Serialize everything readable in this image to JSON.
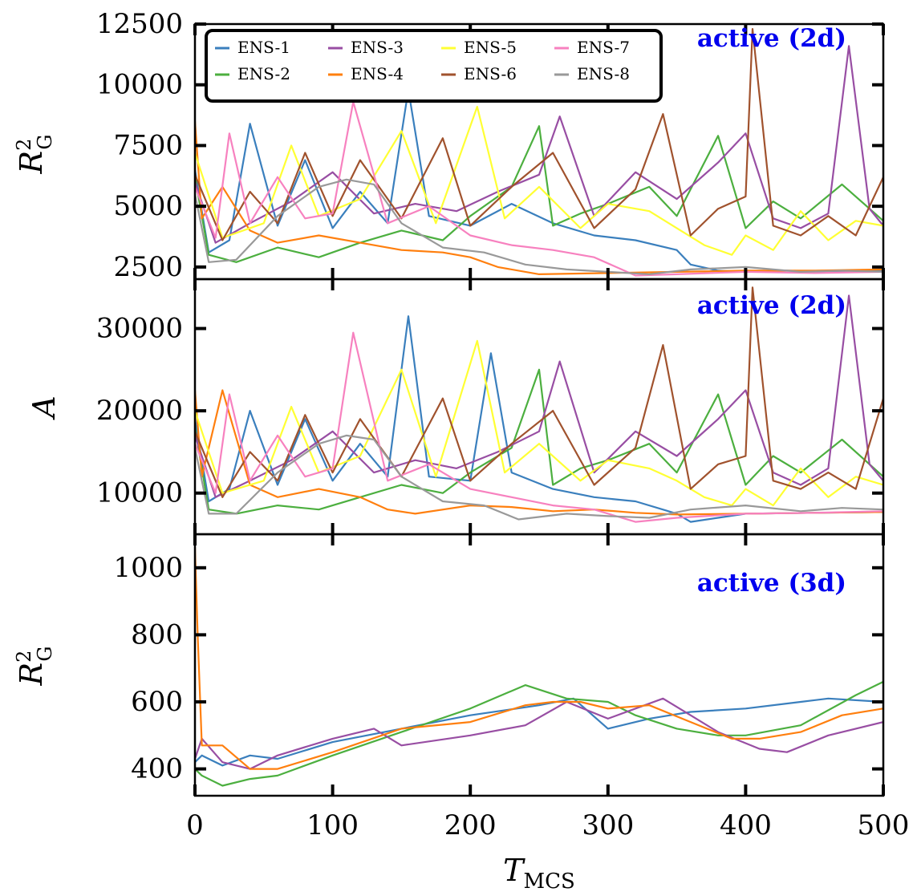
{
  "colors": {
    "ENS-1": "#3a7fbd",
    "ENS-2": "#4caf3f",
    "ENS-3": "#984ea3",
    "ENS-4": "#ff7f0e",
    "ENS-5": "#ffff33",
    "ENS-6": "#a0522d",
    "ENS-7": "#f781bf",
    "ENS-8": "#999999"
  },
  "xaxis": {
    "label_main": "T",
    "label_sub": "MCS",
    "ticks": [
      "0",
      "100",
      "200",
      "300",
      "400",
      "500"
    ],
    "range": [
      0,
      500
    ]
  },
  "chart_data": [
    {
      "type": "line",
      "panel": "top",
      "annotation": "active (2d)",
      "ylabel_main": "R",
      "ylabel_sup": "2",
      "ylabel_sub": "G",
      "ylim": [
        2000,
        12500
      ],
      "yticks": [
        "2500",
        "5000",
        "7500",
        "10000",
        "12500"
      ],
      "legend": {
        "placement": "top-left",
        "entries": [
          "ENS-1",
          "ENS-3",
          "ENS-5",
          "ENS-7",
          "ENS-2",
          "ENS-4",
          "ENS-6",
          "ENS-8"
        ]
      },
      "series": [
        {
          "name": "ENS-1",
          "x": [
            0,
            10,
            25,
            40,
            60,
            80,
            100,
            120,
            140,
            155,
            170,
            200,
            230,
            260,
            290,
            320,
            350,
            360,
            380,
            400,
            430,
            460,
            500
          ],
          "y": [
            6500,
            3100,
            3600,
            8400,
            4200,
            6900,
            4100,
            5600,
            4300,
            9800,
            4600,
            4200,
            5100,
            4300,
            3800,
            3600,
            3200,
            2600,
            2350,
            2300,
            2350,
            2300,
            2350
          ]
        },
        {
          "name": "ENS-2",
          "x": [
            0,
            10,
            30,
            60,
            90,
            120,
            150,
            180,
            200,
            230,
            250,
            260,
            280,
            300,
            330,
            350,
            380,
            400,
            420,
            440,
            470,
            500
          ],
          "y": [
            6200,
            3000,
            2700,
            3300,
            2900,
            3500,
            4000,
            3600,
            4600,
            5800,
            8300,
            4200,
            4700,
            5100,
            5800,
            4600,
            7900,
            4100,
            5200,
            4500,
            5900,
            4400
          ]
        },
        {
          "name": "ENS-3",
          "x": [
            0,
            15,
            40,
            70,
            100,
            130,
            160,
            190,
            220,
            250,
            265,
            290,
            320,
            350,
            380,
            400,
            420,
            440,
            460,
            475,
            490,
            500
          ],
          "y": [
            6000,
            3500,
            4300,
            5200,
            6400,
            4700,
            5100,
            4800,
            5600,
            6300,
            8700,
            4600,
            6400,
            5300,
            6800,
            8000,
            4500,
            4100,
            4700,
            11600,
            4900,
            4200
          ]
        },
        {
          "name": "ENS-4",
          "x": [
            0,
            5,
            20,
            40,
            60,
            90,
            120,
            150,
            180,
            200,
            220,
            250,
            300,
            350,
            400,
            450,
            500
          ],
          "y": [
            8500,
            4500,
            5800,
            4000,
            3500,
            3800,
            3500,
            3200,
            3100,
            2900,
            2500,
            2200,
            2250,
            2300,
            2350,
            2350,
            2400
          ]
        },
        {
          "name": "ENS-5",
          "x": [
            0,
            20,
            50,
            70,
            90,
            120,
            150,
            175,
            205,
            225,
            250,
            280,
            300,
            330,
            350,
            370,
            390,
            400,
            420,
            440,
            460,
            480,
            500
          ],
          "y": [
            7200,
            3700,
            4300,
            7500,
            4600,
            5300,
            8100,
            4300,
            9100,
            4500,
            5800,
            4100,
            5100,
            4800,
            4100,
            3400,
            3000,
            3800,
            3200,
            4800,
            3600,
            4400,
            4200
          ]
        },
        {
          "name": "ENS-6",
          "x": [
            0,
            20,
            40,
            60,
            80,
            100,
            120,
            150,
            180,
            200,
            230,
            260,
            290,
            320,
            340,
            360,
            380,
            400,
            405,
            420,
            440,
            460,
            480,
            500
          ],
          "y": [
            6300,
            3600,
            5600,
            4300,
            7200,
            4600,
            6900,
            4500,
            7800,
            4200,
            5800,
            7200,
            4100,
            5700,
            8800,
            3800,
            4900,
            5400,
            12300,
            4200,
            3800,
            4600,
            3800,
            6200
          ]
        },
        {
          "name": "ENS-7",
          "x": [
            0,
            15,
            25,
            40,
            60,
            80,
            100,
            115,
            140,
            170,
            200,
            230,
            260,
            290,
            320,
            350,
            400,
            450,
            500
          ],
          "y": [
            5800,
            3700,
            8000,
            4300,
            6200,
            4500,
            4700,
            9300,
            4300,
            5000,
            3800,
            3400,
            3200,
            2900,
            2150,
            2200,
            2300,
            2250,
            2300
          ]
        },
        {
          "name": "ENS-8",
          "x": [
            0,
            10,
            30,
            60,
            90,
            110,
            130,
            150,
            180,
            210,
            240,
            270,
            300,
            330,
            360,
            400,
            440,
            470,
            500
          ],
          "y": [
            5500,
            2700,
            2800,
            4600,
            5800,
            6100,
            5900,
            4300,
            3300,
            3100,
            2600,
            2400,
            2300,
            2200,
            2400,
            2500,
            2300,
            2350,
            2300
          ]
        }
      ]
    },
    {
      "type": "line",
      "panel": "middle",
      "annotation": "active (2d)",
      "ylabel_main": "A",
      "ylim": [
        5000,
        36000
      ],
      "yticks": [
        "10000",
        "20000",
        "30000"
      ],
      "series": [
        {
          "name": "ENS-1",
          "x": [
            0,
            10,
            25,
            40,
            60,
            80,
            100,
            120,
            140,
            155,
            170,
            200,
            215,
            230,
            260,
            290,
            320,
            350,
            360,
            380,
            400,
            450,
            500
          ],
          "y": [
            19000,
            9000,
            10500,
            20000,
            11000,
            19000,
            11500,
            16000,
            12000,
            31500,
            12000,
            11500,
            27000,
            12500,
            10500,
            9500,
            9000,
            7500,
            6500,
            7000,
            7500,
            7600,
            7700
          ]
        },
        {
          "name": "ENS-2",
          "x": [
            0,
            10,
            30,
            60,
            90,
            120,
            150,
            180,
            200,
            230,
            250,
            260,
            280,
            300,
            330,
            350,
            380,
            400,
            420,
            440,
            470,
            500
          ],
          "y": [
            18000,
            8000,
            7500,
            8500,
            8000,
            9500,
            11000,
            10000,
            12500,
            15500,
            25000,
            11000,
            13000,
            14000,
            16000,
            12500,
            22000,
            11000,
            14500,
            12500,
            16500,
            12000
          ]
        },
        {
          "name": "ENS-3",
          "x": [
            0,
            15,
            40,
            70,
            100,
            130,
            160,
            190,
            220,
            250,
            265,
            290,
            320,
            350,
            380,
            400,
            420,
            440,
            460,
            475,
            490,
            500
          ],
          "y": [
            17000,
            9500,
            11500,
            14000,
            17500,
            12500,
            14000,
            13000,
            15000,
            17500,
            26000,
            12500,
            17500,
            14500,
            19000,
            22500,
            12500,
            11000,
            13000,
            34000,
            13500,
            11500
          ]
        },
        {
          "name": "ENS-4",
          "x": [
            0,
            5,
            20,
            40,
            60,
            90,
            120,
            140,
            160,
            200,
            230,
            260,
            290,
            320,
            350,
            400,
            450,
            500
          ],
          "y": [
            22500,
            12000,
            22500,
            11000,
            9500,
            10500,
            9500,
            8000,
            7500,
            8500,
            8300,
            7800,
            8000,
            7600,
            7400,
            7500,
            7600,
            7700
          ]
        },
        {
          "name": "ENS-5",
          "x": [
            0,
            20,
            50,
            70,
            90,
            120,
            150,
            175,
            205,
            225,
            250,
            280,
            300,
            330,
            350,
            370,
            390,
            400,
            420,
            440,
            460,
            480,
            500
          ],
          "y": [
            20000,
            10000,
            11500,
            20500,
            12500,
            14500,
            25000,
            12000,
            28500,
            12500,
            16000,
            11500,
            14000,
            13000,
            11500,
            9500,
            8500,
            10500,
            8500,
            13000,
            9500,
            12000,
            11000
          ]
        },
        {
          "name": "ENS-6",
          "x": [
            0,
            20,
            40,
            60,
            80,
            100,
            120,
            150,
            180,
            200,
            230,
            260,
            290,
            320,
            340,
            360,
            380,
            400,
            405,
            420,
            440,
            460,
            480,
            500
          ],
          "y": [
            17500,
            9500,
            15000,
            11500,
            19500,
            12500,
            19000,
            12000,
            21500,
            11500,
            16000,
            20000,
            11000,
            15500,
            28000,
            10500,
            13500,
            14500,
            35000,
            11500,
            10500,
            12500,
            10500,
            21500
          ]
        },
        {
          "name": "ENS-7",
          "x": [
            0,
            15,
            25,
            40,
            60,
            80,
            100,
            115,
            140,
            170,
            200,
            230,
            260,
            290,
            320,
            350,
            400,
            450,
            500
          ],
          "y": [
            16000,
            10000,
            22000,
            11500,
            17000,
            12000,
            13000,
            29500,
            11500,
            13500,
            10500,
            9500,
            8500,
            8000,
            6500,
            7000,
            7500,
            7600,
            7800
          ]
        },
        {
          "name": "ENS-8",
          "x": [
            0,
            10,
            30,
            60,
            90,
            110,
            130,
            150,
            180,
            210,
            235,
            270,
            300,
            330,
            360,
            400,
            440,
            470,
            500
          ],
          "y": [
            15500,
            7500,
            7500,
            12500,
            16000,
            17000,
            16500,
            12000,
            9000,
            8500,
            6800,
            7500,
            7200,
            7000,
            8000,
            8500,
            7800,
            8200,
            8000
          ]
        }
      ]
    },
    {
      "type": "line",
      "panel": "bottom",
      "annotation": "active (3d)",
      "ylabel_main": "R",
      "ylabel_sup": "2",
      "ylabel_sub": "G",
      "ylim": [
        320,
        1100
      ],
      "yticks": [
        "400",
        "600",
        "800",
        "1000"
      ],
      "series": [
        {
          "name": "ENS-1",
          "x": [
            0,
            5,
            20,
            40,
            60,
            100,
            150,
            200,
            250,
            275,
            300,
            330,
            360,
            400,
            440,
            460,
            500
          ],
          "y": [
            420,
            440,
            410,
            440,
            430,
            480,
            520,
            560,
            590,
            610,
            520,
            550,
            570,
            580,
            600,
            610,
            600
          ]
        },
        {
          "name": "ENS-2",
          "x": [
            0,
            5,
            20,
            40,
            60,
            100,
            150,
            200,
            240,
            270,
            300,
            320,
            350,
            380,
            400,
            440,
            480,
            500
          ],
          "y": [
            400,
            380,
            350,
            370,
            380,
            440,
            510,
            580,
            650,
            610,
            600,
            560,
            520,
            500,
            500,
            530,
            620,
            660
          ]
        },
        {
          "name": "ENS-3",
          "x": [
            0,
            5,
            20,
            40,
            60,
            100,
            130,
            150,
            200,
            240,
            270,
            300,
            340,
            360,
            380,
            410,
            430,
            460,
            500
          ],
          "y": [
            430,
            490,
            420,
            400,
            440,
            490,
            520,
            470,
            500,
            530,
            600,
            550,
            610,
            560,
            510,
            460,
            450,
            500,
            540
          ]
        },
        {
          "name": "ENS-4",
          "x": [
            0,
            2,
            5,
            20,
            40,
            60,
            100,
            150,
            200,
            240,
            260,
            280,
            300,
            330,
            360,
            390,
            410,
            440,
            470,
            500
          ],
          "y": [
            1060,
            800,
            470,
            470,
            400,
            400,
            450,
            520,
            540,
            590,
            600,
            600,
            580,
            590,
            540,
            490,
            490,
            510,
            560,
            580
          ]
        }
      ]
    }
  ]
}
